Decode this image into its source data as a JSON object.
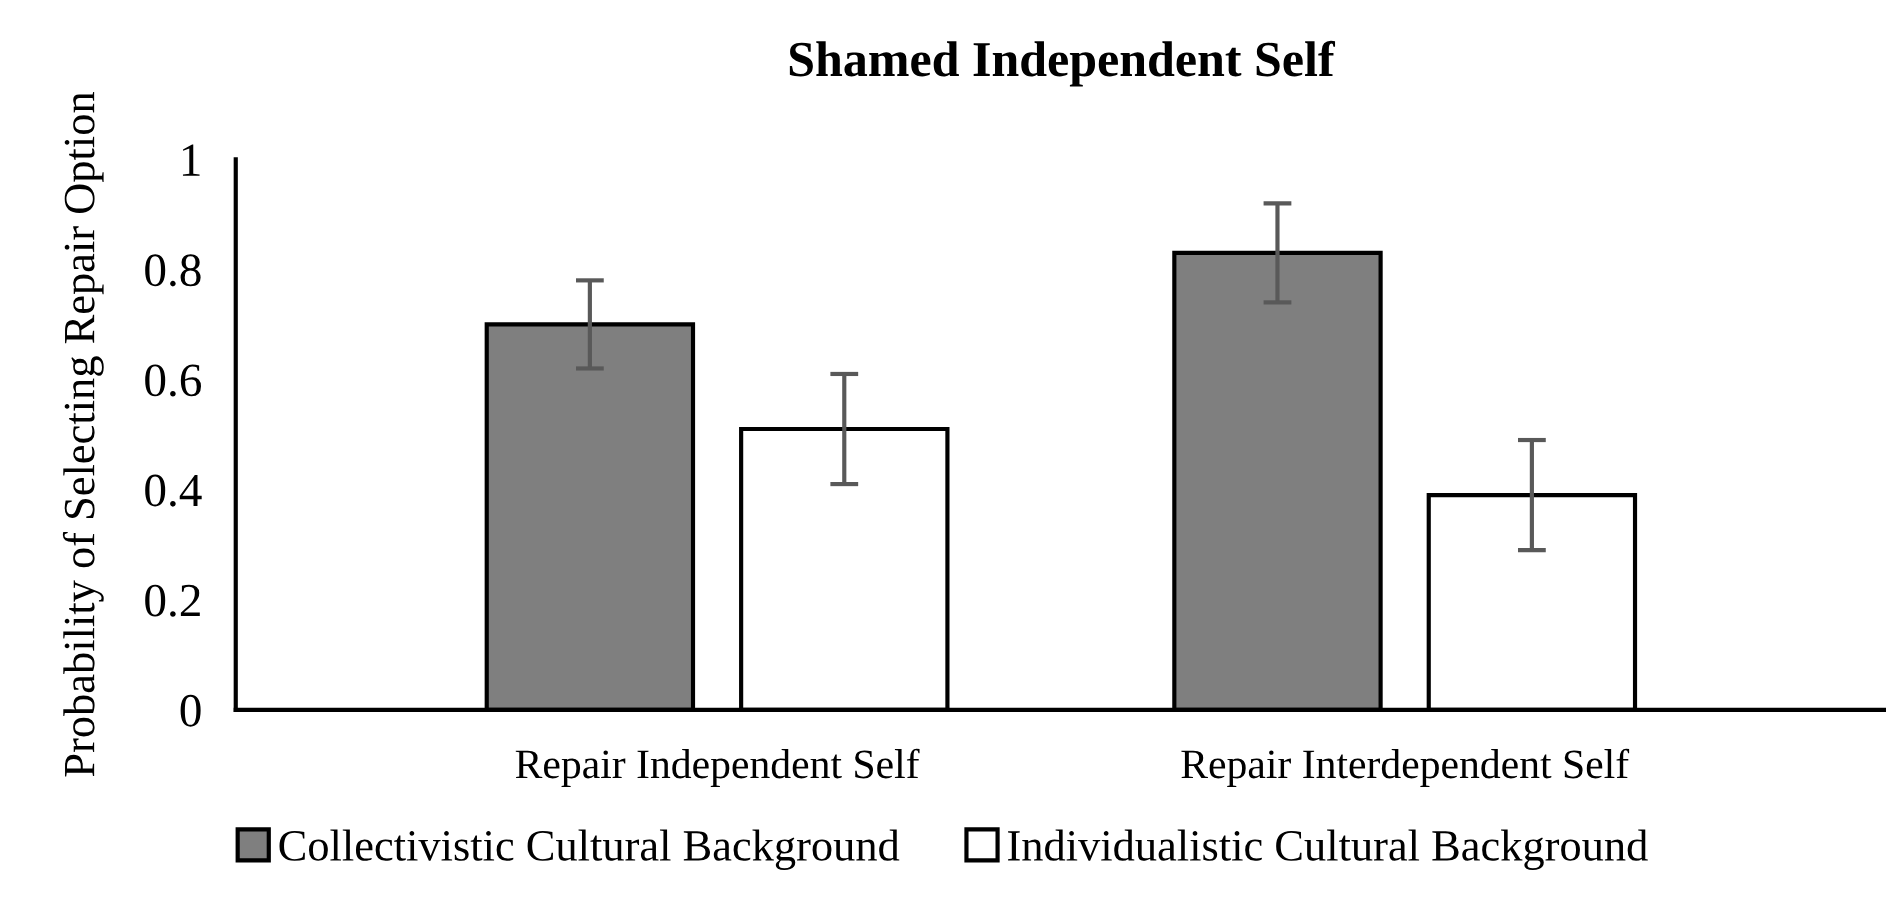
{
  "chart_data": {
    "type": "bar",
    "title": "Shamed Independent Self",
    "ylabel": "Probability of Selecting Repair Option",
    "categories": [
      "Repair Independent Self",
      "Repair Interdependent Self"
    ],
    "series": [
      {
        "name": "Collectivistic Cultural Background",
        "color": "#7f7f7f",
        "values": [
          0.7,
          0.83
        ],
        "errors": [
          0.08,
          0.09
        ]
      },
      {
        "name": "Individualistic Cultural Background",
        "color": "#ffffff",
        "values": [
          0.51,
          0.39
        ],
        "errors": [
          0.1,
          0.1
        ]
      }
    ],
    "ylim": [
      0,
      1
    ],
    "yticks": [
      0,
      0.2,
      0.4,
      0.6,
      0.8,
      1
    ],
    "grid": false,
    "legend": "bottom"
  }
}
